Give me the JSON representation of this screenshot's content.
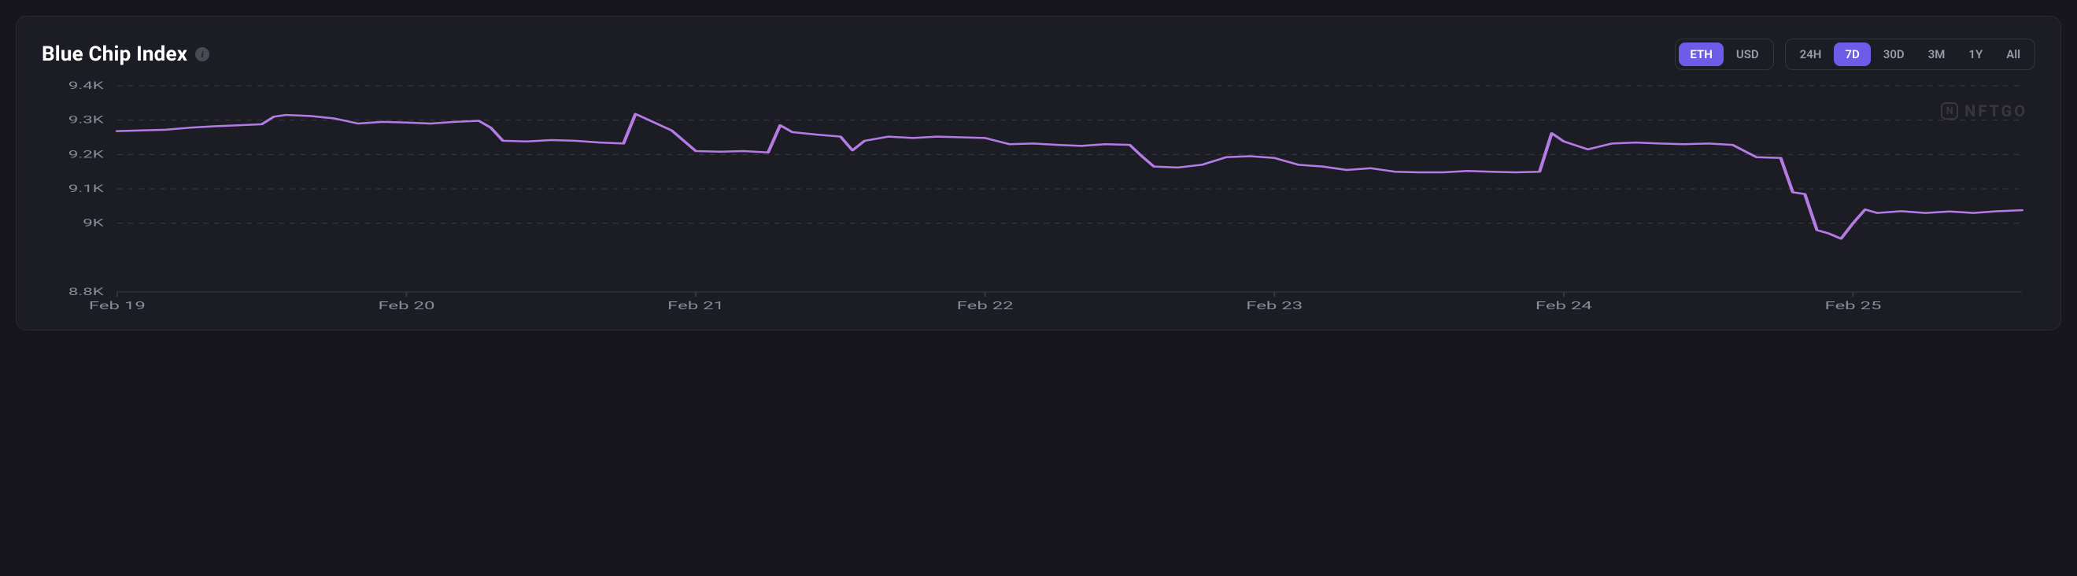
{
  "title": "Blue Chip Index",
  "currency_toggle": {
    "options": [
      "ETH",
      "USD"
    ],
    "active": "ETH"
  },
  "range_toggle": {
    "options": [
      "24H",
      "7D",
      "30D",
      "3M",
      "1Y",
      "All"
    ],
    "active": "7D"
  },
  "watermark": "NFTGO",
  "chart": {
    "type": "line",
    "line_color": "#b57be5",
    "line_width": 2.5,
    "background_color": "#1c1c24",
    "grid_color": "#3a3a45",
    "grid_dash": "4 4",
    "label_color": "#8a8a98",
    "ylim": [
      8800,
      9400
    ],
    "yticks": [
      8800,
      9000,
      9100,
      9200,
      9300,
      9400
    ],
    "ytick_labels": [
      "8.8K",
      "9K",
      "9.1K",
      "9.2K",
      "9.3K",
      "9.4K"
    ],
    "xticks": [
      0,
      24,
      48,
      72,
      96,
      120,
      144
    ],
    "xtick_labels": [
      "Feb 19",
      "Feb 20",
      "Feb 21",
      "Feb 22",
      "Feb 23",
      "Feb 24",
      "Feb 25"
    ],
    "xlim": [
      0,
      158
    ],
    "series": [
      {
        "x": 0,
        "y": 9268
      },
      {
        "x": 2,
        "y": 9270
      },
      {
        "x": 4,
        "y": 9272
      },
      {
        "x": 6,
        "y": 9278
      },
      {
        "x": 8,
        "y": 9282
      },
      {
        "x": 10,
        "y": 9285
      },
      {
        "x": 12,
        "y": 9288
      },
      {
        "x": 13,
        "y": 9310
      },
      {
        "x": 14,
        "y": 9315
      },
      {
        "x": 16,
        "y": 9312
      },
      {
        "x": 18,
        "y": 9305
      },
      {
        "x": 20,
        "y": 9290
      },
      {
        "x": 22,
        "y": 9295
      },
      {
        "x": 24,
        "y": 9293
      },
      {
        "x": 26,
        "y": 9290
      },
      {
        "x": 28,
        "y": 9295
      },
      {
        "x": 30,
        "y": 9298
      },
      {
        "x": 31,
        "y": 9278
      },
      {
        "x": 32,
        "y": 9240
      },
      {
        "x": 34,
        "y": 9238
      },
      {
        "x": 36,
        "y": 9242
      },
      {
        "x": 38,
        "y": 9240
      },
      {
        "x": 40,
        "y": 9235
      },
      {
        "x": 42,
        "y": 9232
      },
      {
        "x": 43,
        "y": 9318
      },
      {
        "x": 44,
        "y": 9302
      },
      {
        "x": 46,
        "y": 9270
      },
      {
        "x": 48,
        "y": 9210
      },
      {
        "x": 50,
        "y": 9208
      },
      {
        "x": 52,
        "y": 9210
      },
      {
        "x": 54,
        "y": 9206
      },
      {
        "x": 55,
        "y": 9285
      },
      {
        "x": 56,
        "y": 9265
      },
      {
        "x": 58,
        "y": 9258
      },
      {
        "x": 60,
        "y": 9252
      },
      {
        "x": 61,
        "y": 9212
      },
      {
        "x": 62,
        "y": 9240
      },
      {
        "x": 64,
        "y": 9252
      },
      {
        "x": 66,
        "y": 9248
      },
      {
        "x": 68,
        "y": 9252
      },
      {
        "x": 70,
        "y": 9250
      },
      {
        "x": 72,
        "y": 9248
      },
      {
        "x": 74,
        "y": 9230
      },
      {
        "x": 76,
        "y": 9232
      },
      {
        "x": 78,
        "y": 9228
      },
      {
        "x": 80,
        "y": 9225
      },
      {
        "x": 82,
        "y": 9230
      },
      {
        "x": 84,
        "y": 9228
      },
      {
        "x": 85,
        "y": 9195
      },
      {
        "x": 86,
        "y": 9165
      },
      {
        "x": 88,
        "y": 9162
      },
      {
        "x": 90,
        "y": 9170
      },
      {
        "x": 92,
        "y": 9192
      },
      {
        "x": 94,
        "y": 9195
      },
      {
        "x": 96,
        "y": 9190
      },
      {
        "x": 98,
        "y": 9170
      },
      {
        "x": 100,
        "y": 9165
      },
      {
        "x": 102,
        "y": 9155
      },
      {
        "x": 104,
        "y": 9160
      },
      {
        "x": 106,
        "y": 9150
      },
      {
        "x": 108,
        "y": 9148
      },
      {
        "x": 110,
        "y": 9148
      },
      {
        "x": 112,
        "y": 9152
      },
      {
        "x": 114,
        "y": 9150
      },
      {
        "x": 116,
        "y": 9148
      },
      {
        "x": 118,
        "y": 9150
      },
      {
        "x": 119,
        "y": 9262
      },
      {
        "x": 120,
        "y": 9238
      },
      {
        "x": 122,
        "y": 9215
      },
      {
        "x": 124,
        "y": 9232
      },
      {
        "x": 126,
        "y": 9235
      },
      {
        "x": 128,
        "y": 9232
      },
      {
        "x": 130,
        "y": 9230
      },
      {
        "x": 132,
        "y": 9232
      },
      {
        "x": 134,
        "y": 9228
      },
      {
        "x": 136,
        "y": 9192
      },
      {
        "x": 138,
        "y": 9190
      },
      {
        "x": 139,
        "y": 9090
      },
      {
        "x": 140,
        "y": 9085
      },
      {
        "x": 141,
        "y": 8980
      },
      {
        "x": 142,
        "y": 8970
      },
      {
        "x": 143,
        "y": 8955
      },
      {
        "x": 144,
        "y": 9000
      },
      {
        "x": 145,
        "y": 9040
      },
      {
        "x": 146,
        "y": 9030
      },
      {
        "x": 148,
        "y": 9035
      },
      {
        "x": 150,
        "y": 9030
      },
      {
        "x": 152,
        "y": 9034
      },
      {
        "x": 154,
        "y": 9030
      },
      {
        "x": 156,
        "y": 9035
      },
      {
        "x": 158,
        "y": 9038
      }
    ]
  }
}
